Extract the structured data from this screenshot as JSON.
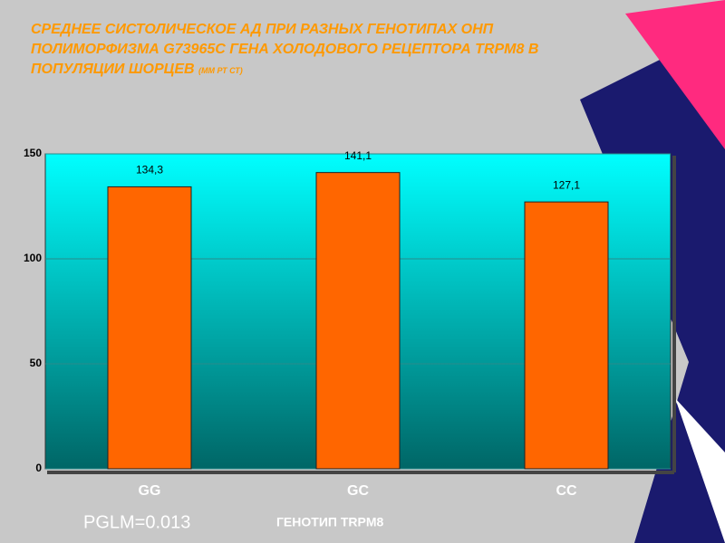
{
  "chart_data": {
    "type": "bar",
    "title": "СРЕДНЕЕ СИСТОЛИЧЕСКОЕ АД ПРИ РАЗНЫХ ГЕНОТИПАХ ОНП ПОЛИМОРФИЗМА G73965C ГЕНА ХОЛОДОВОГО РЕЦЕПТОРА TRPM8 В ПОПУЛЯЦИИ ШОРЦЕВ",
    "units": "(ММ РТ СТ)",
    "categories": [
      "GG",
      "GC",
      "CC"
    ],
    "values": [
      134.3,
      141.1,
      127.1
    ],
    "value_labels": [
      "134,3",
      "141,1",
      "127,1"
    ],
    "color": "#ff6600",
    "ylim": [
      0,
      150
    ],
    "yticks": [
      0,
      50,
      100,
      150
    ],
    "grid": true,
    "xlabel": "ГЕНОТИП TRPM8",
    "annotation": "PGLM=0.013"
  }
}
